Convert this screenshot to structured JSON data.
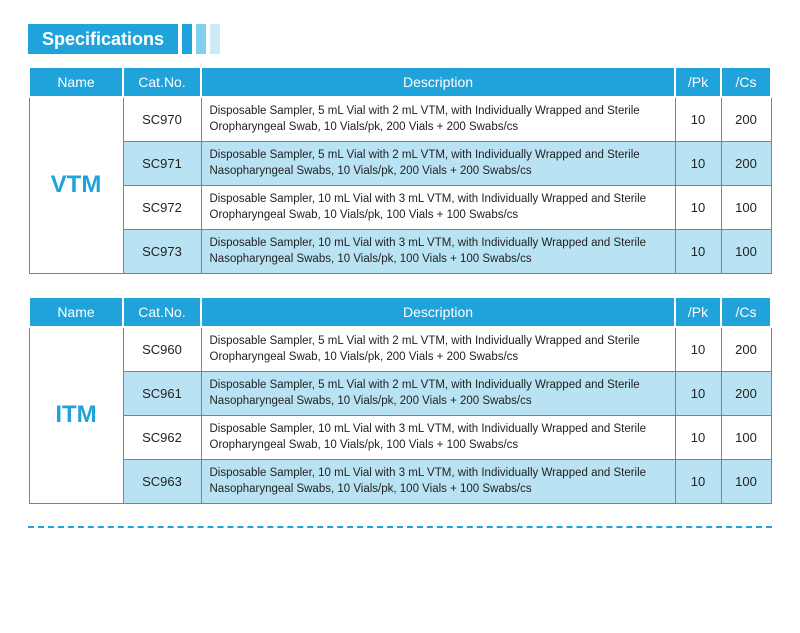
{
  "title": "Specifications",
  "colors": {
    "primary": "#1fa3da",
    "altRow": "#b9e3f2",
    "normRow": "#ffffff",
    "text": "#222222"
  },
  "columns": {
    "name": "Name",
    "cat": "Cat.No.",
    "desc": "Description",
    "pk": "/Pk",
    "cs": "/Cs"
  },
  "tables": [
    {
      "name": "VTM",
      "rows": [
        {
          "cat": "SC970",
          "desc": "Disposable Sampler, 5 mL Vial with 2 mL VTM, with Individually Wrapped and Sterile Oropharyngeal Swab, 10 Vials/pk, 200 Vials + 200 Swabs/cs",
          "pk": "10",
          "cs": "200",
          "alt": false
        },
        {
          "cat": "SC971",
          "desc": "Disposable Sampler, 5 mL Vial with 2 mL VTM, with Individually Wrapped and Sterile Nasopharyngeal Swabs, 10 Vials/pk, 200 Vials + 200 Swabs/cs",
          "pk": "10",
          "cs": "200",
          "alt": true
        },
        {
          "cat": "SC972",
          "desc": "Disposable Sampler, 10 mL Vial with 3 mL VTM, with Individually Wrapped and Sterile Oropharyngeal Swab, 10 Vials/pk, 100 Vials + 100 Swabs/cs",
          "pk": "10",
          "cs": "100",
          "alt": false
        },
        {
          "cat": "SC973",
          "desc": "Disposable Sampler, 10 mL Vial with 3 mL VTM, with Individually Wrapped and Sterile Nasopharyngeal Swabs, 10 Vials/pk, 100 Vials + 100 Swabs/cs",
          "pk": "10",
          "cs": "100",
          "alt": true
        }
      ]
    },
    {
      "name": "ITM",
      "rows": [
        {
          "cat": "SC960",
          "desc": "Disposable Sampler, 5 mL Vial with 2 mL VTM, with Individually Wrapped and Sterile Oropharyngeal Swab, 10 Vials/pk, 200 Vials + 200 Swabs/cs",
          "pk": "10",
          "cs": "200",
          "alt": false
        },
        {
          "cat": "SC961",
          "desc": "Disposable Sampler, 5 mL Vial with 2 mL VTM, with Individually Wrapped and Sterile Nasopharyngeal Swabs, 10 Vials/pk, 200 Vials + 200 Swabs/cs",
          "pk": "10",
          "cs": "200",
          "alt": true
        },
        {
          "cat": "SC962",
          "desc": "Disposable Sampler, 10 mL Vial with 3 mL VTM, with Individually Wrapped and Sterile Oropharyngeal Swab, 10 Vials/pk, 100 Vials + 100 Swabs/cs",
          "pk": "10",
          "cs": "100",
          "alt": false
        },
        {
          "cat": "SC963",
          "desc": "Disposable Sampler, 10 mL Vial with 3 mL VTM, with Individually Wrapped and Sterile Nasopharyngeal Swabs, 10 Vials/pk, 100 Vials + 100 Swabs/cs",
          "pk": "10",
          "cs": "100",
          "alt": true
        }
      ]
    }
  ]
}
